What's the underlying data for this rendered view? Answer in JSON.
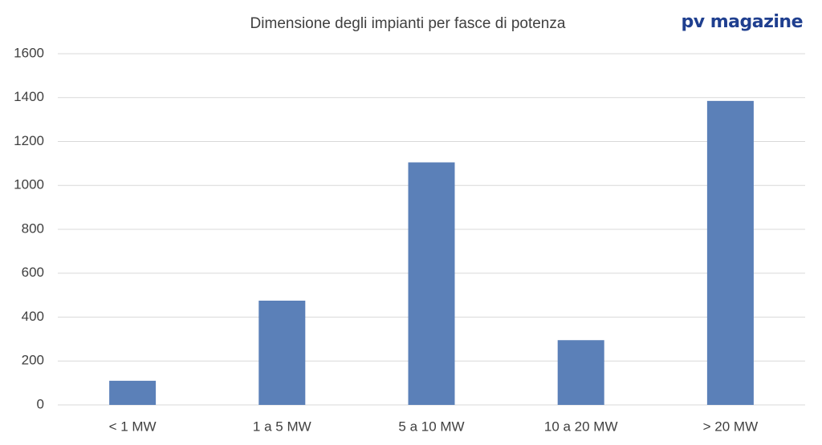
{
  "chart_data": {
    "type": "bar",
    "title": "Dimensione degli impianti per fasce di potenza",
    "brand": "pv magazine",
    "categories": [
      "< 1 MW",
      "1 a 5 MW",
      "5 a 10 MW",
      "10 a 20 MW",
      "> 20 MW"
    ],
    "values": [
      110,
      475,
      1105,
      295,
      1385
    ],
    "color": "#5b80b8",
    "ylim": [
      0,
      1600
    ],
    "yticks": [
      0,
      200,
      400,
      600,
      800,
      1000,
      1200,
      1400,
      1600
    ],
    "grid": true
  }
}
